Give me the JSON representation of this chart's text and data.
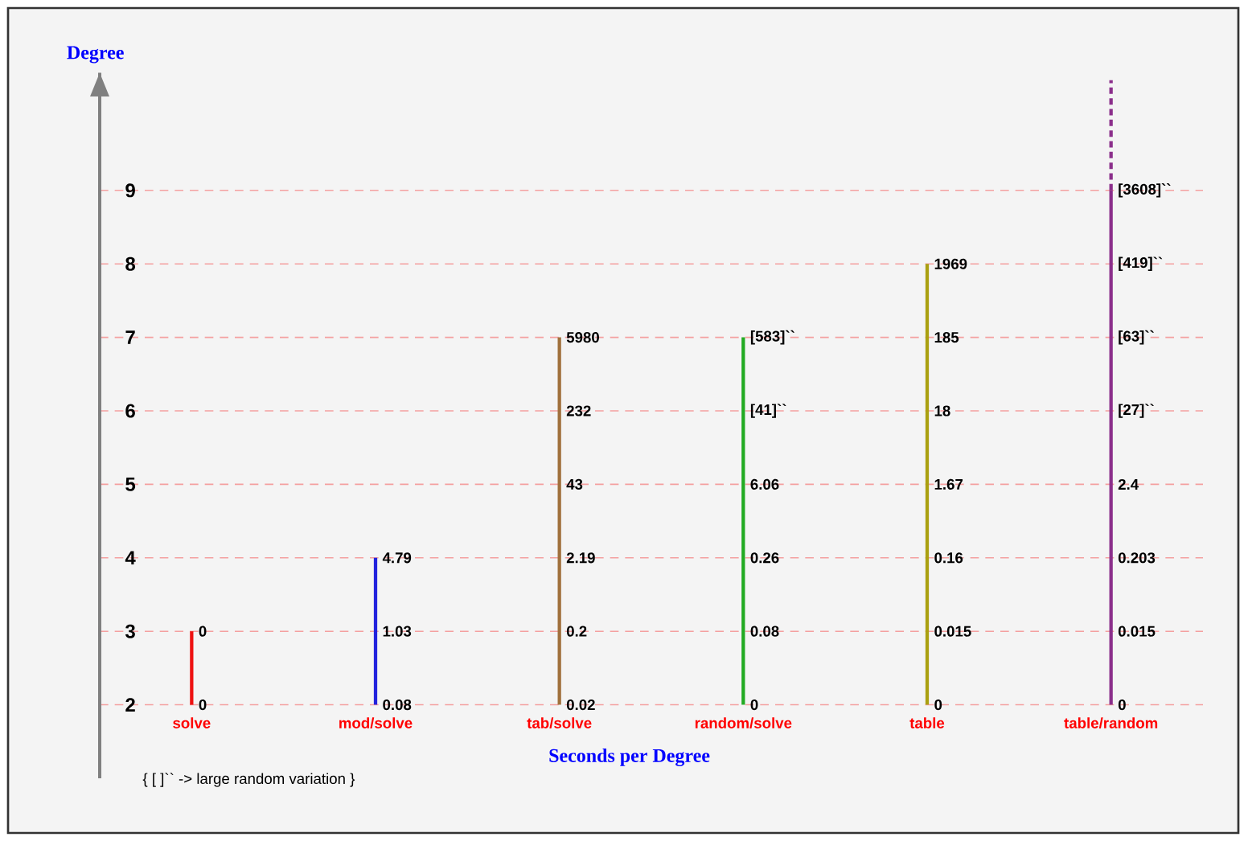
{
  "chart_data": {
    "type": "line",
    "xlabel": "Seconds per Degree",
    "ylabel": "Degree",
    "categories": [
      "solve",
      "mod/solve",
      "tab/solve",
      "random/solve",
      "table",
      "table/random"
    ],
    "ylim": [
      1,
      10.6
    ],
    "yticks": [
      2,
      3,
      4,
      5,
      6,
      7,
      8,
      9
    ],
    "grid": "y",
    "marker": "none",
    "series": [
      {
        "color": "#ee1111",
        "x": [
          "solve",
          "solve"
        ],
        "values": [
          2,
          3
        ]
      },
      {
        "color": "#2222dd",
        "x": [
          "mod/solve",
          "mod/solve",
          "mod/solve"
        ],
        "values": [
          2,
          3,
          4
        ]
      },
      {
        "color": "#a0703c",
        "x": [
          "tab/solve",
          "tab/solve",
          "tab/solve",
          "tab/solve",
          "tab/solve",
          "tab/solve"
        ],
        "values": [
          2,
          3,
          4,
          5,
          6,
          7
        ]
      },
      {
        "color": "#22aa22",
        "x": [
          "random/solve",
          "random/solve",
          "random/solve",
          "random/solve",
          "random/solve",
          "random/solve"
        ],
        "values": [
          2,
          3,
          4,
          5,
          6,
          7
        ]
      },
      {
        "color": "#aaa011",
        "x": [
          "table",
          "table",
          "table",
          "table",
          "table",
          "table",
          "table"
        ],
        "values": [
          2,
          3,
          4,
          5,
          6,
          7,
          8
        ]
      },
      {
        "color": "#8b2f8b",
        "x": [
          "table/random",
          "table/random",
          "table/random",
          "table/random",
          "table/random",
          "table/random",
          "table/random",
          "table/random"
        ],
        "values": [
          2,
          3,
          4,
          5,
          6,
          7,
          8,
          9
        ]
      },
      {
        "color": "#8b2f8b",
        "x": [
          "table/random",
          "table/random"
        ],
        "values": [
          9,
          10.5
        ],
        "line_style": "dashed"
      }
    ],
    "annotations": [
      {
        "text": "0",
        "x": "solve",
        "y": 2
      },
      {
        "text": "0",
        "x": "solve",
        "y": 3
      },
      {
        "text": "0.08",
        "x": "mod/solve",
        "y": 2
      },
      {
        "text": "1.03",
        "x": "mod/solve",
        "y": 3
      },
      {
        "text": "4.79",
        "x": "mod/solve",
        "y": 4
      },
      {
        "text": "0.02",
        "x": "tab/solve",
        "y": 2
      },
      {
        "text": "0.2",
        "x": "tab/solve",
        "y": 3
      },
      {
        "text": "2.19",
        "x": "tab/solve",
        "y": 4
      },
      {
        "text": "43",
        "x": "tab/solve",
        "y": 5
      },
      {
        "text": "232",
        "x": "tab/solve",
        "y": 6
      },
      {
        "text": "5980",
        "x": "tab/solve",
        "y": 7
      },
      {
        "text": "0",
        "x": "random/solve",
        "y": 2
      },
      {
        "text": "0.08",
        "x": "random/solve",
        "y": 3
      },
      {
        "text": "0.26",
        "x": "random/solve",
        "y": 4
      },
      {
        "text": "6.06",
        "x": "random/solve",
        "y": 5
      },
      {
        "text": "[41]``",
        "x": "random/solve",
        "y": 6
      },
      {
        "text": "[583]``",
        "x": "random/solve",
        "y": 7
      },
      {
        "text": "0",
        "x": "table",
        "y": 2
      },
      {
        "text": "0.015",
        "x": "table",
        "y": 3
      },
      {
        "text": "0.16",
        "x": "table",
        "y": 4
      },
      {
        "text": "1.67",
        "x": "table",
        "y": 5
      },
      {
        "text": "18",
        "x": "table",
        "y": 6
      },
      {
        "text": "185",
        "x": "table",
        "y": 7
      },
      {
        "text": "1969",
        "x": "table",
        "y": 8
      },
      {
        "text": "0",
        "x": "table/random",
        "y": 2
      },
      {
        "text": "0.015",
        "x": "table/random",
        "y": 3
      },
      {
        "text": "0.203",
        "x": "table/random",
        "y": 4
      },
      {
        "text": "2.4",
        "x": "table/random",
        "y": 5
      },
      {
        "text": "[27]``",
        "x": "table/random",
        "y": 6
      },
      {
        "text": "[63]``",
        "x": "table/random",
        "y": 7
      },
      {
        "text": "[419]``",
        "x": "table/random",
        "y": 8
      },
      {
        "text": "[3608]``",
        "x": "table/random",
        "y": 9
      },
      "{ [ ]`` -> large random variation }"
    ]
  }
}
